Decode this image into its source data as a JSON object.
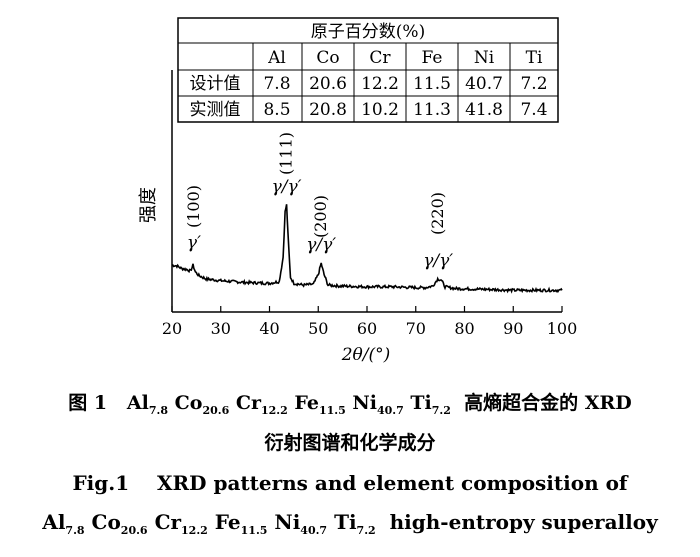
{
  "composition_table": {
    "title": "原子百分数(%)",
    "columns": [
      "Al",
      "Co",
      "Cr",
      "Fe",
      "Ni",
      "Ti"
    ],
    "rows": [
      {
        "label": "设计值",
        "values": [
          "7.8",
          "20.6",
          "12.2",
          "11.5",
          "40.7",
          "7.2"
        ]
      },
      {
        "label": "实测值",
        "values": [
          "8.5",
          "20.8",
          "10.2",
          "11.3",
          "41.8",
          "7.4"
        ]
      }
    ]
  },
  "chart_data": {
    "type": "line",
    "xlabel": "2θ/(°)",
    "ylabel": "强度",
    "xlim": [
      20,
      100
    ],
    "xticks": [
      20,
      30,
      40,
      50,
      60,
      70,
      80,
      90,
      100
    ],
    "yticks_shown": false,
    "series": [
      {
        "x": [
          20,
          21,
          22,
          23,
          23.8,
          24.3,
          24.8,
          25.5,
          27,
          30,
          35,
          40,
          42,
          42.8,
          43.2,
          43.5,
          43.8,
          44.3,
          45,
          47,
          49,
          50,
          50.6,
          51.2,
          52,
          54,
          60,
          65,
          70,
          72,
          73.5,
          74.5,
          75.2,
          76,
          78,
          85,
          90,
          95,
          100
        ],
        "y": [
          31,
          30,
          27,
          26,
          24,
          31,
          23,
          19,
          15,
          13,
          11,
          10,
          12,
          40,
          92,
          100,
          66,
          17,
          10,
          8,
          9,
          20,
          33,
          20,
          8,
          7,
          6,
          6,
          5,
          5,
          7,
          15,
          14,
          6,
          4,
          3,
          2,
          2,
          2
        ]
      }
    ],
    "peak_labels": [
      {
        "x": 24.5,
        "hkl": "(100)",
        "phase": "γ′"
      },
      {
        "x": 43.5,
        "hkl": "(111)",
        "phase": "γ/γ′"
      },
      {
        "x": 50.6,
        "hkl": "(200)",
        "phase": "γ/γ′"
      },
      {
        "x": 74.6,
        "hkl": "(220)",
        "phase": "γ/γ′"
      }
    ]
  },
  "caption": {
    "zh_figure": "图 1",
    "zh_alloy": [
      {
        "el": "Al",
        "sub": "7.8"
      },
      {
        "el": "Co",
        "sub": "20.6"
      },
      {
        "el": "Cr",
        "sub": "12.2"
      },
      {
        "el": "Fe",
        "sub": "11.5"
      },
      {
        "el": "Ni",
        "sub": "40.7"
      },
      {
        "el": "Ti",
        "sub": "7.2"
      }
    ],
    "zh_text1": "高熵超合金的 XRD",
    "zh_text2": "衍射图谱和化学成分",
    "en_figure": "Fig.1",
    "en_text1": "XRD patterns and element composition of",
    "en_text2": "high-entropy superalloy"
  }
}
